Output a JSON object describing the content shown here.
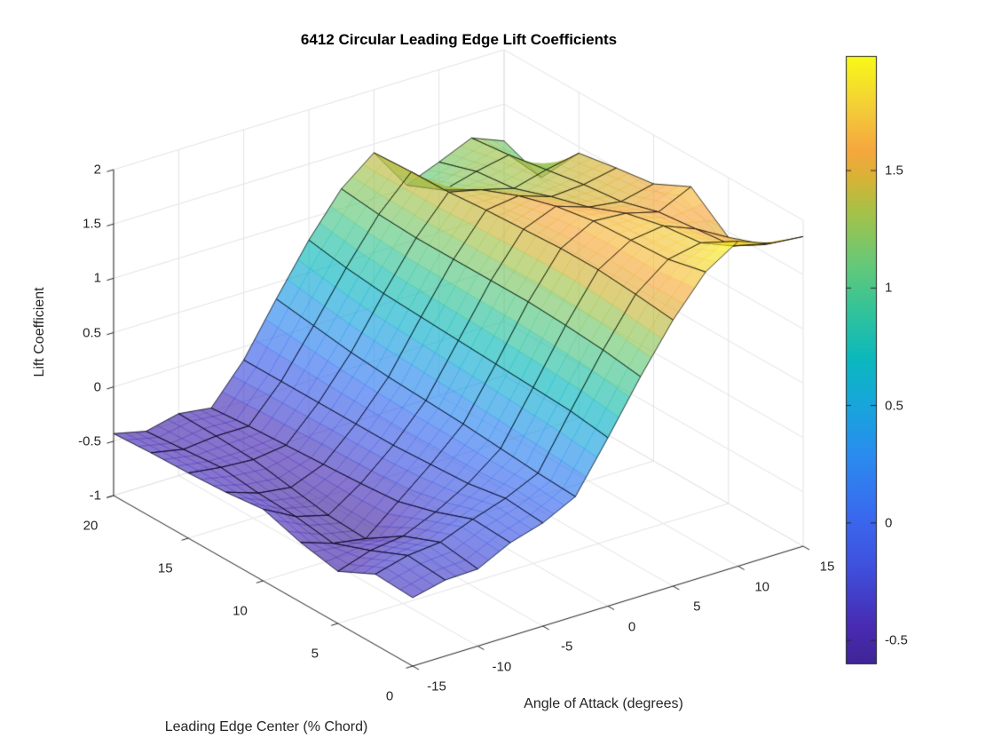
{
  "title": "6412 Circular Leading Edge Lift Coefficients",
  "chart_data": {
    "type": "surface",
    "title": "6412 Circular Leading Edge Lift Coefficients",
    "xlabel": "Angle of Attack (degrees)",
    "ylabel": "Leading Edge Center (% Chord)",
    "zlabel": "Lift Coefficient",
    "x_values": [
      -15,
      -12.5,
      -10,
      -7.5,
      -5,
      -2.5,
      0,
      2.5,
      5,
      7.5,
      10,
      12.5,
      15
    ],
    "y_values": [
      0,
      2.5,
      5,
      7.5,
      10,
      12.5,
      15,
      17.5,
      20
    ],
    "z_grid": [
      [
        -0.37,
        -0.3,
        -0.29,
        -0.14,
        -0.05,
        0.1,
        0.55,
        1.02,
        1.45,
        1.8,
        1.99,
        1.88,
        1.85
      ],
      [
        -0.35,
        -0.27,
        -0.24,
        -0.12,
        -0.02,
        0.12,
        0.6,
        1.07,
        1.49,
        1.72,
        1.78,
        1.66,
        1.58
      ],
      [
        -0.52,
        -0.42,
        -0.38,
        -0.25,
        -0.08,
        0.15,
        0.62,
        1.1,
        1.52,
        1.7,
        1.74,
        1.62,
        1.45
      ],
      [
        -0.45,
        -0.55,
        -0.6,
        -0.35,
        -0.1,
        0.18,
        0.64,
        1.12,
        1.52,
        1.68,
        1.66,
        1.58,
        1.72
      ],
      [
        -0.34,
        -0.5,
        -0.58,
        -0.38,
        -0.12,
        0.2,
        0.66,
        1.12,
        1.5,
        1.62,
        1.52,
        1.48,
        1.55
      ],
      [
        -0.38,
        -0.48,
        -0.52,
        -0.4,
        -0.12,
        0.22,
        0.68,
        1.12,
        1.48,
        1.52,
        1.42,
        1.44,
        1.5
      ],
      [
        -0.4,
        -0.44,
        -0.46,
        -0.42,
        -0.12,
        0.25,
        0.7,
        1.12,
        1.45,
        1.38,
        1.3,
        1.38,
        1.44
      ],
      [
        -0.41,
        -0.47,
        -0.44,
        -0.44,
        -0.12,
        0.3,
        0.74,
        1.14,
        1.44,
        1.18,
        1.26,
        1.32,
        1.02
      ],
      [
        -0.43,
        -0.5,
        -0.43,
        -0.47,
        -0.12,
        0.35,
        0.8,
        1.18,
        1.42,
        1.03,
        1.15,
        1.28,
        1.16
      ]
    ],
    "x_ticks": [
      -15,
      -10,
      -5,
      0,
      5,
      10,
      15
    ],
    "y_ticks": [
      0,
      5,
      10,
      15,
      20
    ],
    "z_ticks": [
      -1,
      -0.5,
      0,
      0.5,
      1,
      1.5,
      2
    ],
    "z_lim": [
      -1,
      2
    ],
    "color_lim": [
      -0.598,
      1.988
    ],
    "colorbar_ticks": [
      -0.5,
      0,
      0.5,
      1,
      1.5
    ],
    "colormap_name": "parula",
    "colormap_anchors": [
      [
        0,
        "#3f2597"
      ],
      [
        0.06,
        "#482bb2"
      ],
      [
        0.16,
        "#3f51dd"
      ],
      [
        0.24,
        "#3a68ee"
      ],
      [
        0.34,
        "#2b8bef"
      ],
      [
        0.43,
        "#17a7da"
      ],
      [
        0.5,
        "#0bb8be"
      ],
      [
        0.58,
        "#32c39a"
      ],
      [
        0.66,
        "#68c977"
      ],
      [
        0.74,
        "#a3c24a"
      ],
      [
        0.8,
        "#d9b335"
      ],
      [
        0.845,
        "#f6a73f"
      ],
      [
        0.91,
        "#f3cb39"
      ],
      [
        1,
        "#f8fa18"
      ]
    ],
    "surface_alpha": 0.66,
    "edge_color": "#000000",
    "axis_color": "#262626",
    "grid_color": "#e2e2e2",
    "background": "#ffffff"
  }
}
